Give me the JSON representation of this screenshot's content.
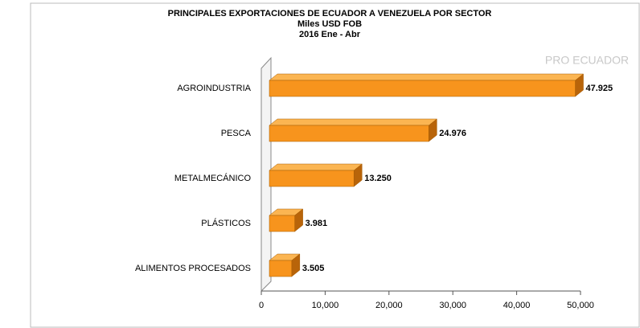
{
  "chart_data": {
    "type": "hbar",
    "title": "PRINCIPALES EXPORTACIONES  DE ECUADOR  A VENEZUELA POR SECTOR",
    "subtitle": [
      "Miles USD FOB",
      "2016 Ene - Abr"
    ],
    "watermark": "PRO ECUADOR",
    "categories": [
      "AGROINDUSTRIA",
      "PESCA",
      "METALMECÁNICO",
      "PLÁSTICOS",
      "ALIMENTOS PROCESADOS"
    ],
    "values": [
      47925,
      24976,
      13250,
      3981,
      3505
    ],
    "value_labels": [
      "47.925",
      "24.976",
      "13.250",
      "3.981",
      "3.505"
    ],
    "color": "#f7941d",
    "xlim": [
      0,
      50000
    ],
    "xticks": [
      0,
      {
        "value": 10000,
        "label": "10,000"
      },
      {
        "value": 20000,
        "label": "20,000"
      },
      {
        "value": 30000,
        "label": "30,000"
      },
      {
        "value": 40000,
        "label": "40,000"
      },
      {
        "value": 50000,
        "label": "50,000"
      }
    ]
  }
}
